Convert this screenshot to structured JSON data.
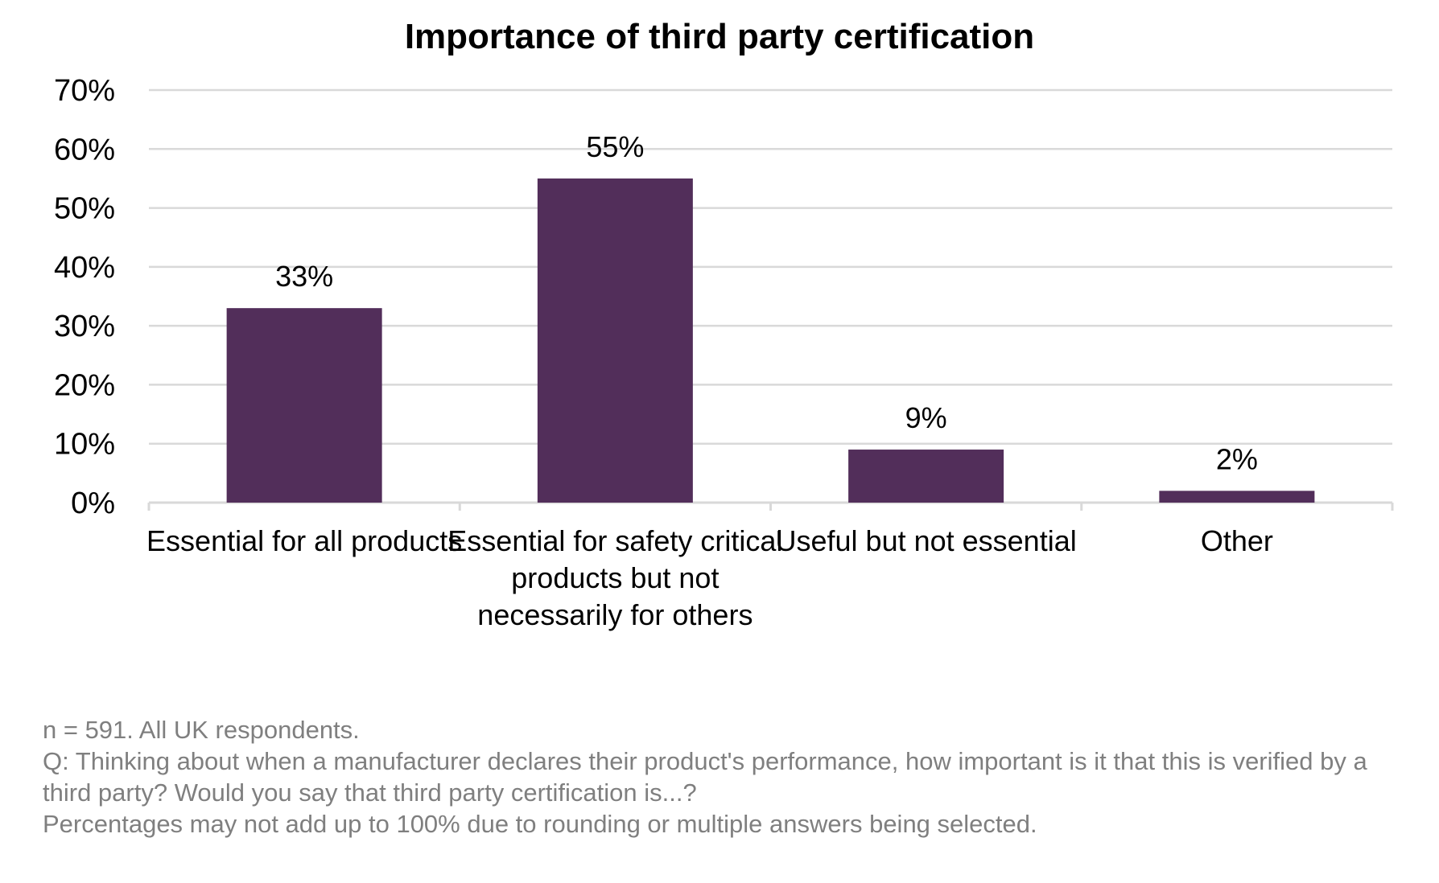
{
  "chart_data": {
    "type": "bar",
    "title": "Importance of third party certification",
    "categories": [
      "Essential for all products",
      "Essential for safety critical products but not necessarily for others",
      "Useful but not essential",
      "Other"
    ],
    "category_lines": [
      [
        "Essential for all products"
      ],
      [
        "Essential for safety critical",
        "products but not",
        "necessarily for others"
      ],
      [
        "Useful but not essential"
      ],
      [
        "Other"
      ]
    ],
    "values": [
      33,
      55,
      9,
      2
    ],
    "data_labels": [
      "33%",
      "55%",
      "9%",
      "2%"
    ],
    "ylim": [
      0,
      70
    ],
    "yticks": [
      "0%",
      "10%",
      "20%",
      "30%",
      "40%",
      "50%",
      "60%",
      "70%"
    ],
    "grid": true,
    "bar_color": "#522e5a",
    "grid_color": "#d9d9d9"
  },
  "notes": {
    "sample": "n = 591. All UK respondents.",
    "question": "Q: Thinking about when a manufacturer declares their product's performance, how important is it that this is verified by a third party? Would you say that third party certification is...?",
    "disclaimer": "Percentages may not add up to 100% due to rounding or multiple answers being selected."
  }
}
